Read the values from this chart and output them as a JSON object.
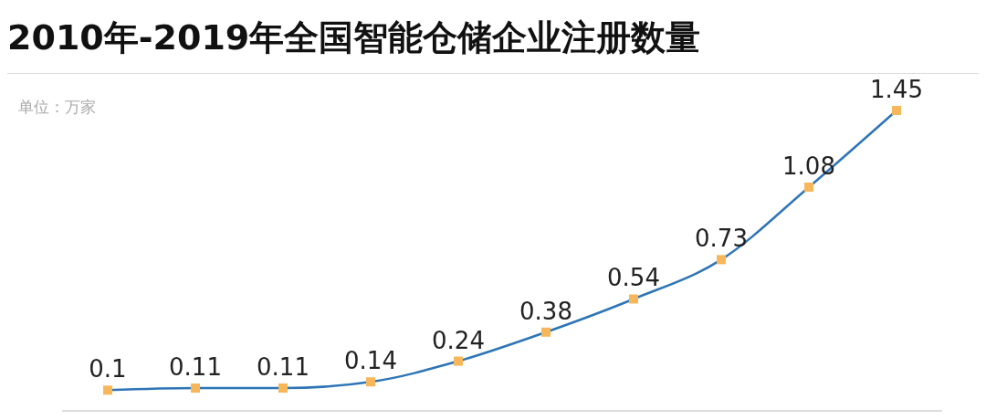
{
  "chart_data": {
    "type": "line",
    "title": "2010年-2019年全国智能仓储企业注册数量",
    "annotations": [
      "单位：万家"
    ],
    "categories": [
      null,
      null,
      null,
      null,
      null,
      null,
      null,
      null,
      null,
      null
    ],
    "series": [
      {
        "color": "#2e75b6",
        "colors": [
          "#f5b75a",
          "#f5b75a",
          "#f5b75a",
          "#f5b75a",
          "#f5b75a",
          "#f5b75a",
          "#f5b75a",
          "#f5b75a",
          "#f5b75a",
          "#f5b75a"
        ],
        "values": [
          0.1,
          0.11,
          0.11,
          0.14,
          0.24,
          0.38,
          0.54,
          0.73,
          1.08,
          1.45
        ]
      }
    ],
    "marker": "square",
    "data_labels": true,
    "grid": false,
    "legend": false,
    "line_style": "solid"
  }
}
